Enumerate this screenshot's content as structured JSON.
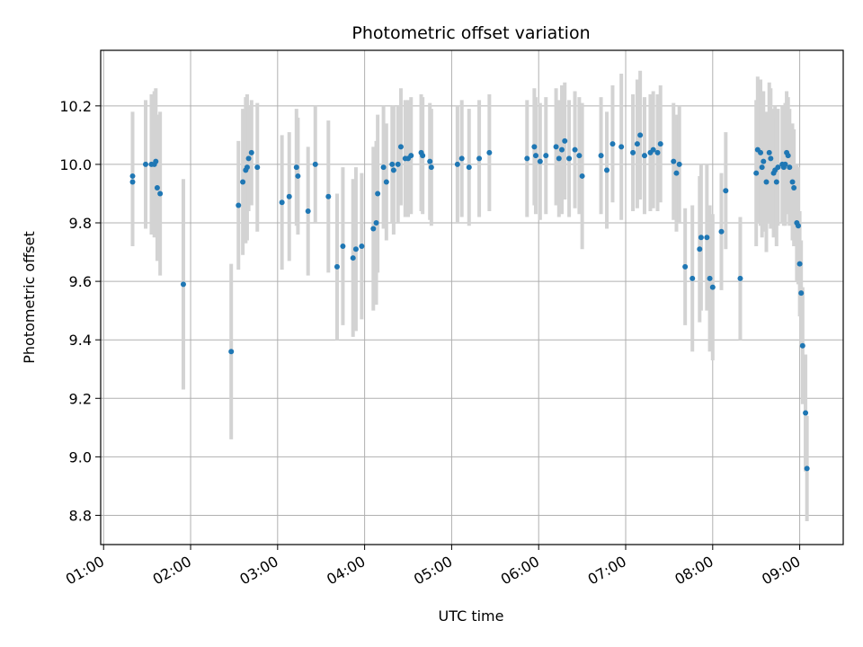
{
  "chart_data": {
    "type": "scatter",
    "title": "Photometric offset variation",
    "xlabel": "UTC time",
    "ylabel": "Photometric offset",
    "x_ticks": [
      "01:00",
      "02:00",
      "03:00",
      "04:00",
      "05:00",
      "06:00",
      "07:00",
      "08:00",
      "09:00"
    ],
    "y_ticks": [
      "8.8",
      "9.0",
      "9.2",
      "9.4",
      "9.6",
      "9.8",
      "10.0",
      "10.2"
    ],
    "xlim": [
      "00:58",
      "09:30"
    ],
    "ylim": [
      8.7,
      10.39
    ],
    "grid": true,
    "x_unit": "HH:MM UTC",
    "colors": {
      "point": "#1f77b4",
      "errorbar": "#d3d3d3",
      "grid": "#b0b0b0"
    },
    "series": [
      {
        "points": [
          [
            "01:20",
            9.94,
            0.22
          ],
          [
            "01:20",
            9.96,
            0.22
          ],
          [
            "01:29",
            10.0,
            0.22
          ],
          [
            "01:33",
            10.0,
            0.24
          ],
          [
            "01:35",
            10.0,
            0.25
          ],
          [
            "01:36",
            10.01,
            0.25
          ],
          [
            "01:37",
            9.92,
            0.25
          ],
          [
            "01:39",
            9.9,
            0.28
          ],
          [
            "01:55",
            9.59,
            0.36
          ],
          [
            "02:28",
            9.36,
            0.3
          ],
          [
            "02:33",
            9.86,
            0.22
          ],
          [
            "02:36",
            9.94,
            0.25
          ],
          [
            "02:38",
            9.98,
            0.25
          ],
          [
            "02:39",
            9.99,
            0.25
          ],
          [
            "02:40",
            10.02,
            0.18
          ],
          [
            "02:42",
            10.04,
            0.18
          ],
          [
            "02:46",
            9.99,
            0.22
          ],
          [
            "03:03",
            9.87,
            0.23
          ],
          [
            "03:08",
            9.89,
            0.22
          ],
          [
            "03:13",
            9.99,
            0.2
          ],
          [
            "03:14",
            9.96,
            0.2
          ],
          [
            "03:21",
            9.84,
            0.22
          ],
          [
            "03:26",
            10.0,
            0.2
          ],
          [
            "03:35",
            9.89,
            0.26
          ],
          [
            "03:41",
            9.65,
            0.25
          ],
          [
            "03:45",
            9.72,
            0.27
          ],
          [
            "03:52",
            9.68,
            0.27
          ],
          [
            "03:54",
            9.71,
            0.28
          ],
          [
            "03:58",
            9.72,
            0.25
          ],
          [
            "04:06",
            9.78,
            0.28
          ],
          [
            "04:08",
            9.8,
            0.28
          ],
          [
            "04:09",
            9.9,
            0.27
          ],
          [
            "04:13",
            9.99,
            0.21
          ],
          [
            "04:15",
            9.94,
            0.2
          ],
          [
            "04:19",
            10.0,
            0.2
          ],
          [
            "04:20",
            9.98,
            0.22
          ],
          [
            "04:23",
            10.0,
            0.2
          ],
          [
            "04:25",
            10.06,
            0.2
          ],
          [
            "04:28",
            10.02,
            0.2
          ],
          [
            "04:30",
            10.02,
            0.2
          ],
          [
            "04:32",
            10.03,
            0.2
          ],
          [
            "04:39",
            10.04,
            0.2
          ],
          [
            "04:40",
            10.03,
            0.2
          ],
          [
            "04:45",
            10.01,
            0.2
          ],
          [
            "04:46",
            9.99,
            0.2
          ],
          [
            "05:04",
            10.0,
            0.2
          ],
          [
            "05:07",
            10.02,
            0.2
          ],
          [
            "05:12",
            9.99,
            0.2
          ],
          [
            "05:19",
            10.02,
            0.2
          ],
          [
            "05:26",
            10.04,
            0.2
          ],
          [
            "05:52",
            10.02,
            0.2
          ],
          [
            "05:57",
            10.06,
            0.2
          ],
          [
            "05:58",
            10.03,
            0.2
          ],
          [
            "06:01",
            10.01,
            0.2
          ],
          [
            "06:05",
            10.03,
            0.2
          ],
          [
            "06:12",
            10.06,
            0.2
          ],
          [
            "06:14",
            10.02,
            0.2
          ],
          [
            "06:16",
            10.05,
            0.22
          ],
          [
            "06:18",
            10.08,
            0.2
          ],
          [
            "06:21",
            10.02,
            0.2
          ],
          [
            "06:25",
            10.05,
            0.2
          ],
          [
            "06:28",
            10.03,
            0.2
          ],
          [
            "06:30",
            9.96,
            0.25
          ],
          [
            "06:43",
            10.03,
            0.2
          ],
          [
            "06:47",
            9.98,
            0.2
          ],
          [
            "06:51",
            10.07,
            0.2
          ],
          [
            "06:57",
            10.06,
            0.25
          ],
          [
            "07:05",
            10.04,
            0.2
          ],
          [
            "07:08",
            10.07,
            0.22
          ],
          [
            "07:10",
            10.1,
            0.22
          ],
          [
            "07:13",
            10.03,
            0.2
          ],
          [
            "07:17",
            10.04,
            0.2
          ],
          [
            "07:19",
            10.05,
            0.2
          ],
          [
            "07:22",
            10.04,
            0.2
          ],
          [
            "07:24",
            10.07,
            0.2
          ],
          [
            "07:33",
            10.01,
            0.2
          ],
          [
            "07:35",
            9.97,
            0.2
          ],
          [
            "07:37",
            10.0,
            0.2
          ],
          [
            "07:41",
            9.65,
            0.2
          ],
          [
            "07:46",
            9.61,
            0.25
          ],
          [
            "07:51",
            9.71,
            0.25
          ],
          [
            "07:52",
            9.75,
            0.25
          ],
          [
            "07:56",
            9.75,
            0.25
          ],
          [
            "07:58",
            9.61,
            0.25
          ],
          [
            "08:00",
            9.58,
            0.25
          ],
          [
            "08:06",
            9.77,
            0.2
          ],
          [
            "08:09",
            9.91,
            0.2
          ],
          [
            "08:19",
            9.61,
            0.21
          ],
          [
            "08:30",
            9.97,
            0.25
          ],
          [
            "08:31",
            10.05,
            0.25
          ],
          [
            "08:33",
            10.04,
            0.25
          ],
          [
            "08:34",
            9.99,
            0.24
          ],
          [
            "08:35",
            10.01,
            0.24
          ],
          [
            "08:37",
            9.94,
            0.24
          ],
          [
            "08:39",
            10.04,
            0.24
          ],
          [
            "08:40",
            10.02,
            0.24
          ],
          [
            "08:42",
            9.97,
            0.22
          ],
          [
            "08:43",
            9.98,
            0.22
          ],
          [
            "08:44",
            9.94,
            0.22
          ],
          [
            "08:45",
            9.99,
            0.2
          ],
          [
            "08:48",
            10.0,
            0.2
          ],
          [
            "08:49",
            9.99,
            0.2
          ],
          [
            "08:50",
            10.0,
            0.21
          ],
          [
            "08:51",
            10.04,
            0.21
          ],
          [
            "08:52",
            10.03,
            0.2
          ],
          [
            "08:53",
            9.99,
            0.2
          ],
          [
            "08:55",
            9.94,
            0.2
          ],
          [
            "08:56",
            9.92,
            0.2
          ],
          [
            "08:58",
            9.8,
            0.2
          ],
          [
            "08:59",
            9.79,
            0.2
          ],
          [
            "09:00",
            9.66,
            0.18
          ],
          [
            "09:01",
            9.56,
            0.18
          ],
          [
            "09:02",
            9.38,
            0.2
          ],
          [
            "09:04",
            9.15,
            0.2
          ],
          [
            "09:05",
            8.96,
            0.18
          ]
        ]
      }
    ]
  }
}
